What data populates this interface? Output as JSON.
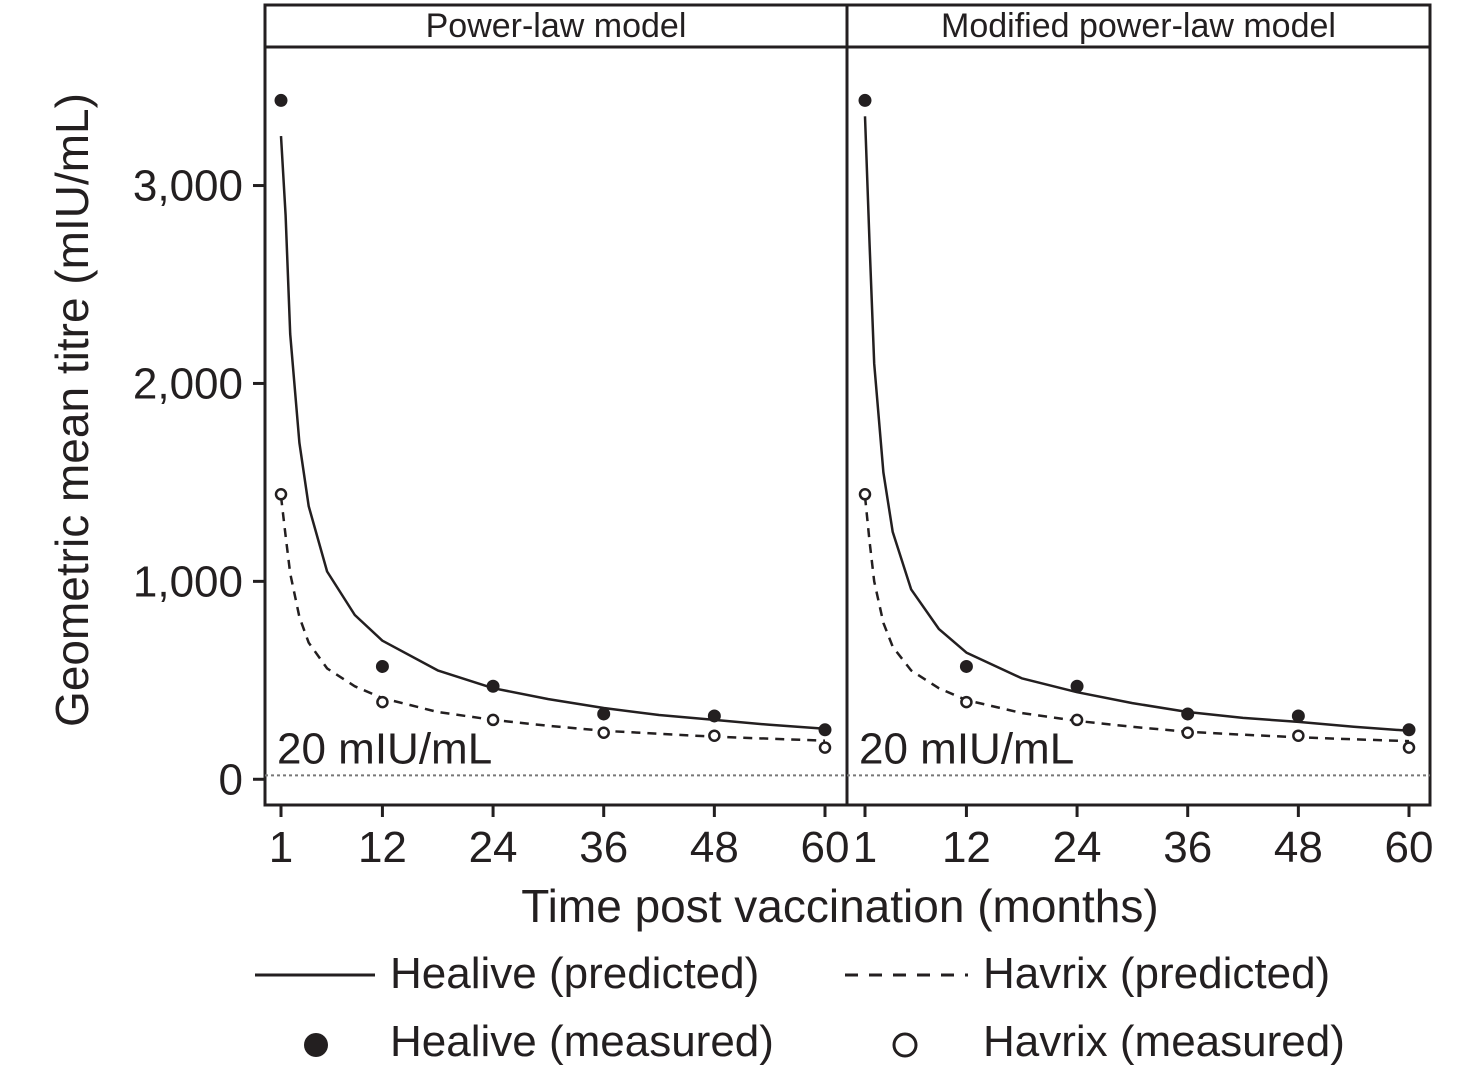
{
  "chart_data": {
    "type": "line",
    "ylabel": "Geometric mean titre (mIU/mL)",
    "xlabel": "Time post vaccination (months)",
    "xticks": [
      1,
      12,
      24,
      36,
      48,
      60
    ],
    "xtick_labels": [
      "1",
      "12",
      "24",
      "36",
      "48",
      "60"
    ],
    "ylim": [
      -130,
      3700
    ],
    "yticks": [
      0,
      1000,
      2000,
      3000
    ],
    "ytick_labels": [
      "0",
      "1,000",
      "2,000",
      "3,000"
    ],
    "grid": false,
    "legend_position": "bottom",
    "threshold": {
      "value": 20,
      "label": "20 mIU/mL"
    },
    "panels": [
      {
        "title": "Power-law model",
        "series": [
          {
            "name": "Healive (predicted)",
            "style": "solid",
            "x": [
              1,
              1.5,
              2,
              3,
              4,
              6,
              9,
              12,
              18,
              24,
              30,
              36,
              42,
              48,
              54,
              60
            ],
            "y": [
              3250,
              2850,
              2250,
              1700,
              1380,
              1050,
              830,
              700,
              550,
              460,
              405,
              360,
              325,
              300,
              275,
              255
            ]
          },
          {
            "name": "Havrix (predicted)",
            "style": "dashed",
            "x": [
              1,
              1.5,
              2,
              3,
              4,
              6,
              9,
              12,
              18,
              24,
              30,
              36,
              42,
              48,
              54,
              60
            ],
            "y": [
              1430,
              1230,
              1040,
              820,
              690,
              560,
              470,
              410,
              340,
              300,
              270,
              245,
              230,
              215,
              205,
              195
            ]
          },
          {
            "name": "Healive (measured)",
            "style": "filled-marker",
            "x": [
              1,
              12,
              24,
              36,
              48,
              60
            ],
            "y": [
              3430,
              570,
              470,
              330,
              320,
              250
            ]
          },
          {
            "name": "Havrix (measured)",
            "style": "open-marker",
            "x": [
              1,
              12,
              24,
              36,
              48,
              60
            ],
            "y": [
              1440,
              390,
              300,
              235,
              220,
              160
            ]
          }
        ]
      },
      {
        "title": "Modified power-law model",
        "series": [
          {
            "name": "Healive (predicted)",
            "style": "solid",
            "x": [
              1,
              1.5,
              2,
              3,
              4,
              6,
              9,
              12,
              18,
              24,
              30,
              36,
              42,
              48,
              54,
              60
            ],
            "y": [
              3350,
              2700,
              2100,
              1550,
              1250,
              960,
              760,
              640,
              510,
              440,
              385,
              340,
              310,
              290,
              265,
              245
            ]
          },
          {
            "name": "Havrix (predicted)",
            "style": "dashed",
            "x": [
              1,
              1.5,
              2,
              3,
              4,
              6,
              9,
              12,
              18,
              24,
              30,
              36,
              42,
              48,
              54,
              60
            ],
            "y": [
              1430,
              1200,
              1000,
              790,
              670,
              550,
              460,
              400,
              335,
              295,
              265,
              240,
              225,
              212,
              202,
              193
            ]
          },
          {
            "name": "Healive (measured)",
            "style": "filled-marker",
            "x": [
              1,
              12,
              24,
              36,
              48,
              60
            ],
            "y": [
              3430,
              570,
              470,
              330,
              320,
              250
            ]
          },
          {
            "name": "Havrix (measured)",
            "style": "open-marker",
            "x": [
              1,
              12,
              24,
              36,
              48,
              60
            ],
            "y": [
              1440,
              390,
              300,
              235,
              220,
              160
            ]
          }
        ]
      }
    ],
    "legend": [
      {
        "label": "Healive (predicted)",
        "symbol": "solid-line"
      },
      {
        "label": "Havrix (predicted)",
        "symbol": "dashed-line"
      },
      {
        "label": "Healive (measured)",
        "symbol": "filled-circle"
      },
      {
        "label": "Havrix (measured)",
        "symbol": "open-circle"
      }
    ],
    "colors": {
      "ink": "#231f20",
      "threshold": "#777777",
      "background": "#ffffff"
    }
  }
}
